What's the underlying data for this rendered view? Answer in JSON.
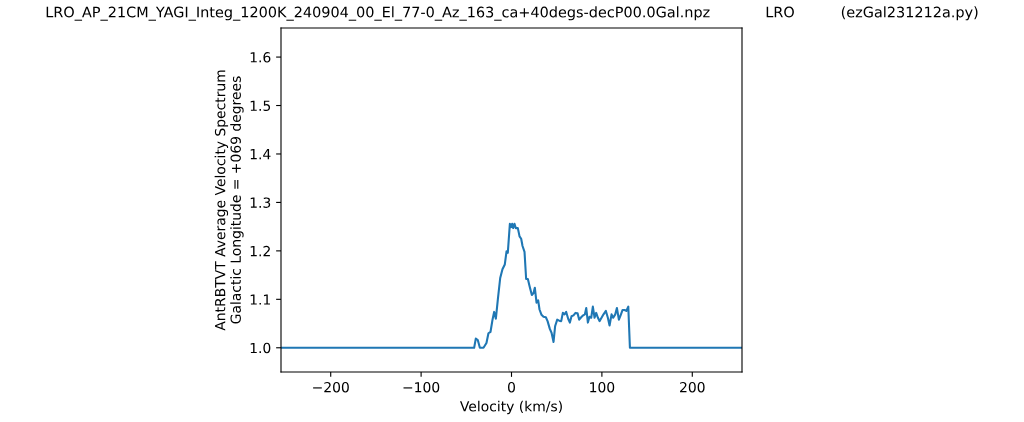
{
  "chart_data": {
    "type": "line",
    "title": "LRO_AP_21CM_YAGI_Integ_1200K_240904_00_El_77-0_Az_163_ca+40degs-decP00.0Gal.npz            LRO          (ezGal231212a.py)",
    "xlabel": "Velocity (km/s)",
    "ylabel": "AntRBTVT Average Velocity Spectrum\nGalactic Longitude = +069 degrees",
    "series": [
      {
        "color": "#1f77b4",
        "x": [
          -255,
          -41.3,
          -39.5,
          -37.3,
          -35,
          -31,
          -27.7,
          -25.5,
          -23.2,
          -21,
          -19.2,
          -17.3,
          -15.1,
          -12.5,
          -10,
          -7.4,
          -5.5,
          -4.1,
          -1.8,
          -0.4,
          0.7,
          1.8,
          3.3,
          4.8,
          7,
          8.9,
          10.7,
          12.2,
          14.4,
          16.2,
          18.1,
          20,
          22.5,
          24.4,
          25.8,
          27.7,
          29.5,
          31,
          33.2,
          35.4,
          38,
          39.9,
          42.4,
          44.3,
          46.5,
          48.3,
          50.6,
          52.8,
          55,
          56.8,
          58.7,
          60.5,
          62.7,
          64.6,
          66.4,
          68.6,
          70.8,
          73.1,
          74.9,
          77.1,
          79.3,
          81.2,
          82.7,
          84.5,
          86.3,
          88.2,
          90,
          91.9,
          93.7,
          95.6,
          97.4,
          99.6,
          101.8,
          104.4,
          106.6,
          108.5,
          110.7,
          112.5,
          114.8,
          116.6,
          118.8,
          120.7,
          122.9,
          125.1,
          127,
          129.2,
          131,
          255
        ],
        "values": [
          1.0,
          1.0,
          1.019,
          1.016,
          1.0,
          1.0,
          1.01,
          1.03,
          1.033,
          1.058,
          1.074,
          1.06,
          1.1,
          1.144,
          1.162,
          1.172,
          1.199,
          1.196,
          1.256,
          1.249,
          1.256,
          1.247,
          1.256,
          1.247,
          1.247,
          1.23,
          1.225,
          1.21,
          1.198,
          1.142,
          1.142,
          1.127,
          1.109,
          1.113,
          1.124,
          1.093,
          1.098,
          1.079,
          1.068,
          1.064,
          1.063,
          1.055,
          1.039,
          1.031,
          1.012,
          1.045,
          1.058,
          1.056,
          1.055,
          1.072,
          1.069,
          1.074,
          1.06,
          1.052,
          1.065,
          1.067,
          1.072,
          1.071,
          1.058,
          1.063,
          1.067,
          1.069,
          1.082,
          1.052,
          1.064,
          1.062,
          1.085,
          1.062,
          1.072,
          1.062,
          1.055,
          1.062,
          1.069,
          1.076,
          1.062,
          1.046,
          1.069,
          1.062,
          1.069,
          1.082,
          1.058,
          1.067,
          1.078,
          1.078,
          1.076,
          1.085,
          1.0,
          1.0
        ]
      }
    ],
    "xlim": [
      -255,
      255
    ],
    "ylim": [
      0.95,
      1.66
    ],
    "xticks": [
      {
        "value": -200,
        "label": "−200"
      },
      {
        "value": -100,
        "label": "−100"
      },
      0,
      100,
      200
    ],
    "yticks": [
      {
        "value": 1.0,
        "label": "1.0"
      },
      {
        "value": 1.1,
        "label": "1.1"
      },
      {
        "value": 1.2,
        "label": "1.2"
      },
      {
        "value": 1.3,
        "label": "1.3"
      },
      {
        "value": 1.4,
        "label": "1.4"
      },
      {
        "value": 1.5,
        "label": "1.5"
      },
      {
        "value": 1.6,
        "label": "1.6"
      }
    ],
    "grid": false
  }
}
